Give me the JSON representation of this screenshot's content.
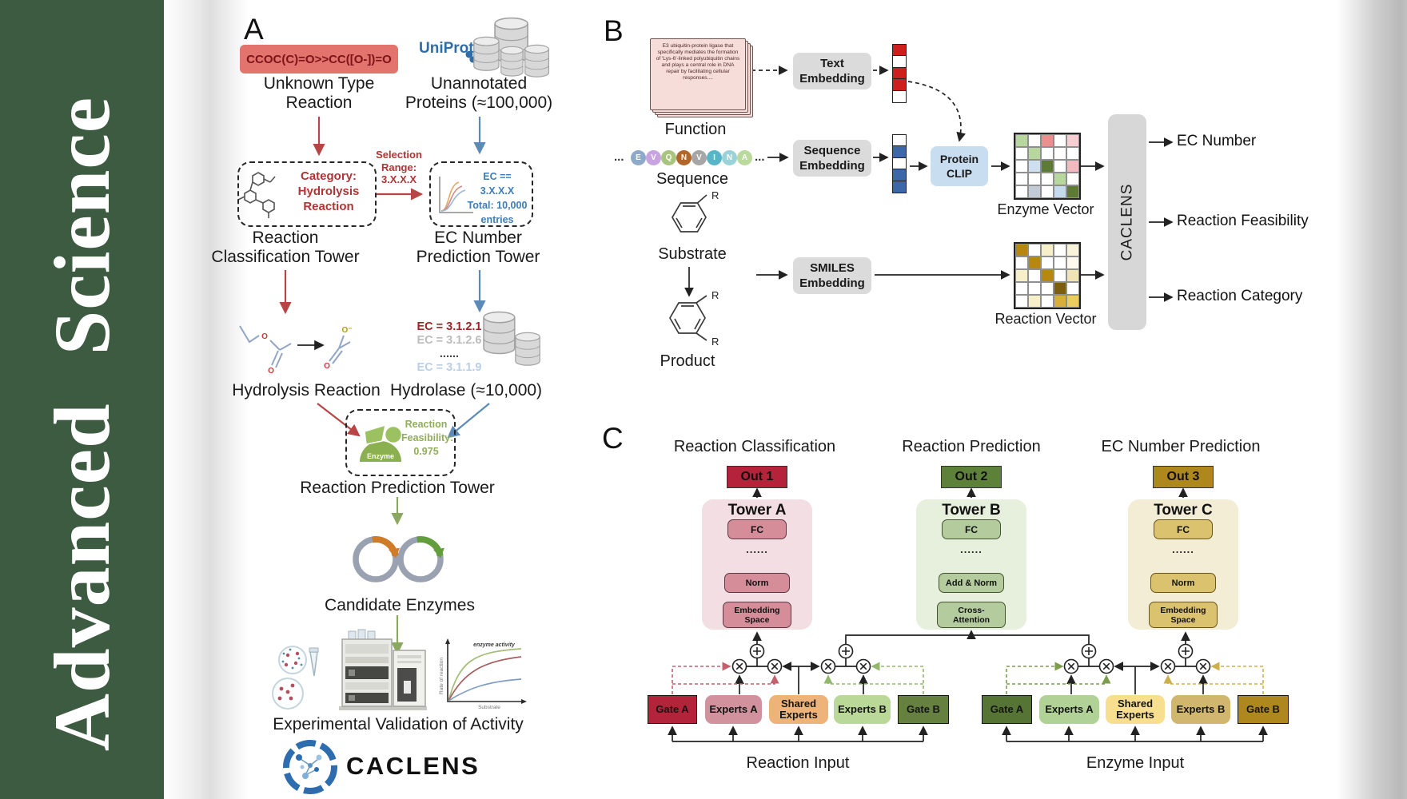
{
  "sidebar": {
    "journal": "Advanced Science",
    "bg": "#3d5b41"
  },
  "panelA": {
    "label": "A",
    "smiles": "CCOC(C)=O>>CC([O-])=O",
    "unknown": "Unknown Type\nReaction",
    "uniprot": "UniProt",
    "unannotated": "Unannotated\nProteins (≈100,000)",
    "selection": "Selection\nRange:\n3.X.X.X",
    "category": "Category:\nHydrolysis\nReaction",
    "ec_filter": "EC == 3.X.X.X\nTotal: 10,000\nentries",
    "tower_class": "Reaction\nClassification Tower",
    "tower_ec": "EC Number\nPrediction Tower",
    "hydrolysis": "Hydrolysis Reaction",
    "hydrolase": "Hydrolase (≈10,000)",
    "ec_list": [
      {
        "text": "EC = 3.1.2.1",
        "color": "#a22323"
      },
      {
        "text": "EC = 3.1.2.6",
        "color": "#bcbcbc"
      },
      {
        "text": "......",
        "color": "#444444"
      },
      {
        "text": "EC = 3.1.1.9",
        "color": "#b9cfe6"
      }
    ],
    "enzyme": "Enzyme",
    "feasibility": "Reaction\nFeasibility:\n0.975",
    "tower_pred": "Reaction Prediction Tower",
    "candidates": "Candidate Enzymes",
    "validation": "Experimental Validation of Activity",
    "plot": {
      "annotation": "enzyme activity",
      "ylabel": "Rate of reaction",
      "xlabel": "Substrate"
    },
    "logo": "CACLENS"
  },
  "panelB": {
    "label": "B",
    "function_card": "E3 ubiquitin-protein ligase that specifically mediates the formation of 'Lys-6'-linked polyubiquitin chains and plays a central role in DNA repair by facilitating cellular responses....",
    "function": "Function",
    "ellipsis": "...",
    "residues": [
      {
        "letter": "E",
        "color": "#8fa9c9"
      },
      {
        "letter": "V",
        "color": "#c7a3e0"
      },
      {
        "letter": "Q",
        "color": "#a9c47f"
      },
      {
        "letter": "N",
        "color": "#b2672a"
      },
      {
        "letter": "V",
        "color": "#a6a6a6"
      },
      {
        "letter": "I",
        "color": "#58b5c8"
      },
      {
        "letter": "N",
        "color": "#9ad2d8"
      },
      {
        "letter": "A",
        "color": "#b9da9c"
      }
    ],
    "sequence": "Sequence",
    "substrate": "Substrate",
    "product": "Product",
    "r": "R",
    "text_embedding": "Text\nEmbedding",
    "seq_embedding": "Sequence\nEmbedding",
    "smiles_embedding": "SMILES\nEmbedding",
    "protein_clip": "Protein\nCLIP",
    "text_vector": [
      "#cd1f1f",
      "#ffffff",
      "#cd1f1f",
      "#cd1f1f",
      "#ffffff"
    ],
    "seq_vector": [
      "#ffffff",
      "#3e67a8",
      "#ffffff",
      "#3e67a8",
      "#3e67a8"
    ],
    "enzyme_grid": [
      "#b7d79e",
      "#ffffff",
      "#ea8e8e",
      "#ffffff",
      "#f6cdd1",
      "#ffffff",
      "#b7d79e",
      "#ffffff",
      "#ffffff",
      "#ffffff",
      "#ffffff",
      "#cfdff2",
      "#5d7b34",
      "#ffffff",
      "#f2babf",
      "#ffffff",
      "#ffffff",
      "#ffffff",
      "#b7d79e",
      "#ffffff",
      "#ffffff",
      "#c1cbd6",
      "#ffffff",
      "#c5d9ef",
      "#5d7b34"
    ],
    "reaction_grid": [
      "#b8870f",
      "#ffffff",
      "#f6efc9",
      "#ffffff",
      "#f9f3da",
      "#ffffff",
      "#b8870f",
      "#ffffff",
      "#ffffff",
      "#fdf9ec",
      "#f6efc9",
      "#ffffff",
      "#b8870f",
      "#ffffff",
      "#f1e4b4",
      "#ffffff",
      "#ffffff",
      "#ffffff",
      "#7c5e0e",
      "#ffffff",
      "#ffffff",
      "#f6efc9",
      "#ffffff",
      "#d9ad39",
      "#eccb5f"
    ],
    "enzyme_vector_label": "Enzyme Vector",
    "reaction_vector_label": "Reaction Vector",
    "caclens": "CACLENS",
    "outputs": [
      "EC Number",
      "Reaction Feasibility",
      "Reaction Category"
    ]
  },
  "panelC": {
    "label": "C",
    "towers": [
      {
        "heading": "Reaction Classification",
        "out": "Out 1",
        "name": "Tower A",
        "fc": "FC",
        "dots": "......",
        "mid": "Norm",
        "bottom": "Embedding\nSpace",
        "container_bg": "#f3dee3",
        "box_bg": "#d68d9a",
        "box_border": "#5c3741",
        "out_bg": "#b5233a"
      },
      {
        "heading": "Reaction Prediction",
        "out": "Out 2",
        "name": "Tower B",
        "fc": "FC",
        "dots": "......",
        "mid": "Add & Norm",
        "bottom": "Cross-\nAttention",
        "container_bg": "#e7efdd",
        "box_bg": "#b4cc9d",
        "box_border": "#44532f",
        "out_bg": "#5e8139"
      },
      {
        "heading": "EC Number Prediction",
        "out": "Out 3",
        "name": "Tower C",
        "fc": "FC",
        "dots": "......",
        "mid": "Norm",
        "bottom": "Embedding\nSpace",
        "container_bg": "#f4edd5",
        "box_bg": "#dbc26e",
        "box_border": "#6b5517",
        "out_bg": "#ae881d"
      }
    ],
    "groups": [
      {
        "label": "Reaction Input",
        "boxes": [
          {
            "text": "Gate A",
            "bg": "#b12439"
          },
          {
            "text": "Experts A",
            "bg": "#d1929d"
          },
          {
            "text": "Shared\nExperts",
            "bg": "#eeb378"
          },
          {
            "text": "Experts B",
            "bg": "#bad898"
          },
          {
            "text": "Gate B",
            "bg": "#66813f"
          }
        ]
      },
      {
        "label": "Enzyme Input",
        "boxes": [
          {
            "text": "Gate A",
            "bg": "#567433"
          },
          {
            "text": "Experts A",
            "bg": "#b1d296"
          },
          {
            "text": "Shared\nExperts",
            "bg": "#f8df8f"
          },
          {
            "text": "Experts B",
            "bg": "#d0b66e"
          },
          {
            "text": "Gate B",
            "bg": "#ae881f"
          }
        ]
      }
    ]
  }
}
